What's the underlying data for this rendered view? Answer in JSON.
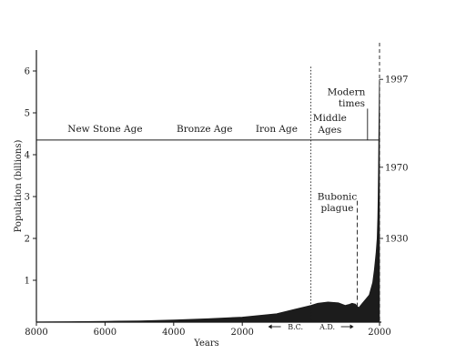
{
  "chart_data": {
    "type": "area",
    "xlabel": "Years",
    "ylabel": "Population (billions)",
    "xlim": [
      -8000,
      2000
    ],
    "ylim": [
      0,
      6.5
    ],
    "x_ticks": [
      {
        "value": -8000,
        "label": "8000"
      },
      {
        "value": -6000,
        "label": "6000"
      },
      {
        "value": -4000,
        "label": "4000"
      },
      {
        "value": -2000,
        "label": "2000"
      },
      {
        "value": 2000,
        "label": "2000"
      }
    ],
    "y_ticks": [
      1,
      2,
      3,
      4,
      5,
      6
    ],
    "era_labels": [
      {
        "text": "New Stone Age",
        "x": -6000
      },
      {
        "text": "Bronze Age",
        "x": -3100
      },
      {
        "text": "Iron Age",
        "x": -1000
      }
    ],
    "middle_ages": {
      "line1": "Middle",
      "line2": "Ages",
      "x": 550
    },
    "modern_times": {
      "line1": "Modern",
      "line2": "times",
      "x": 1350
    },
    "era_line_y": 4.35,
    "era_divider_x": 0,
    "bc_label": "B.C.",
    "ad_label": "A.D.",
    "plague": {
      "line1": "Bubonic",
      "line2": "plague",
      "x": 1350,
      "y_top": 2.9,
      "y_bottom": 0.35
    },
    "right_year_labels": [
      {
        "label": "1997",
        "y": 5.8
      },
      {
        "label": "1970",
        "y": 3.7
      },
      {
        "label": "1930",
        "y": 2.0
      }
    ],
    "series": [
      {
        "x": [
          -8000,
          -7000,
          -6000,
          -5000,
          -4000,
          -3000,
          -2000,
          -1000,
          -500,
          0,
          200,
          500,
          800,
          1000,
          1100,
          1200,
          1300,
          1350,
          1400,
          1500,
          1600,
          1700,
          1800,
          1850,
          1900,
          1930,
          1950,
          1960,
          1970,
          1980,
          1990,
          1997
        ],
        "values": [
          0.005,
          0.01,
          0.02,
          0.03,
          0.05,
          0.08,
          0.12,
          0.2,
          0.3,
          0.4,
          0.45,
          0.48,
          0.46,
          0.4,
          0.42,
          0.45,
          0.43,
          0.37,
          0.35,
          0.45,
          0.55,
          0.65,
          0.95,
          1.25,
          1.65,
          2.0,
          2.5,
          3.0,
          3.7,
          4.4,
          5.2,
          5.8
        ]
      }
    ]
  }
}
